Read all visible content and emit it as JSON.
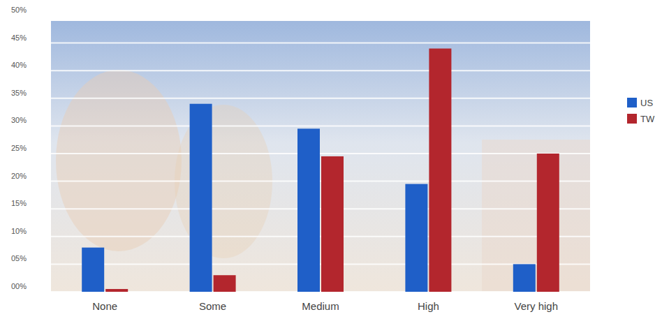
{
  "chart_data": {
    "type": "bar",
    "categories": [
      "None",
      "Some",
      "Medium",
      "High",
      "Very high"
    ],
    "series": [
      {
        "name": "US",
        "color": "#1f5fc8",
        "values": [
          8,
          34,
          29.5,
          19.5,
          5
        ]
      },
      {
        "name": "TW",
        "color": "#b3262d",
        "values": [
          0.5,
          3,
          24.5,
          44,
          25
        ]
      }
    ],
    "ylim": [
      0,
      50
    ],
    "yticks": [
      {
        "value": 0,
        "label": "00%"
      },
      {
        "value": 5,
        "label": "05%"
      },
      {
        "value": 10,
        "label": "10%"
      },
      {
        "value": 15,
        "label": "15%"
      },
      {
        "value": 20,
        "label": "20%"
      },
      {
        "value": 25,
        "label": "25%"
      },
      {
        "value": 30,
        "label": "30%"
      },
      {
        "value": 35,
        "label": "35%"
      },
      {
        "value": 40,
        "label": "40%"
      },
      {
        "value": 45,
        "label": "45%"
      },
      {
        "value": 50,
        "label": "50%"
      }
    ],
    "grid": true,
    "legend": "right"
  }
}
